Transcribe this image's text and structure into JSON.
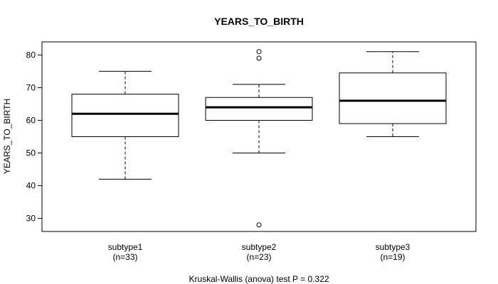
{
  "chart_data": {
    "type": "boxplot",
    "title": "YEARS_TO_BIRTH",
    "ylabel": "YEARS_TO_BIRTH",
    "xlabel": "",
    "ylim": [
      26,
      84
    ],
    "yticks": [
      30,
      40,
      50,
      60,
      70,
      80
    ],
    "ytick_labels": [
      "30",
      "40",
      "50",
      "60",
      "70",
      "80"
    ],
    "footnote": "Kruskal-Wallis (anova) test P = 0.322",
    "groups": [
      {
        "name": "subtype1",
        "n_label": "(n=33)",
        "whisker_low": 42,
        "q1": 55,
        "median": 62,
        "q3": 68,
        "whisker_high": 75,
        "outliers": []
      },
      {
        "name": "subtype2",
        "n_label": "(n=23)",
        "whisker_low": 50,
        "q1": 60,
        "median": 64,
        "q3": 67,
        "whisker_high": 71,
        "outliers": [
          81,
          79,
          28
        ]
      },
      {
        "name": "subtype3",
        "n_label": "(n=19)",
        "whisker_low": 55,
        "q1": 59,
        "median": 66,
        "q3": 74.5,
        "whisker_high": 81,
        "outliers": []
      }
    ]
  }
}
